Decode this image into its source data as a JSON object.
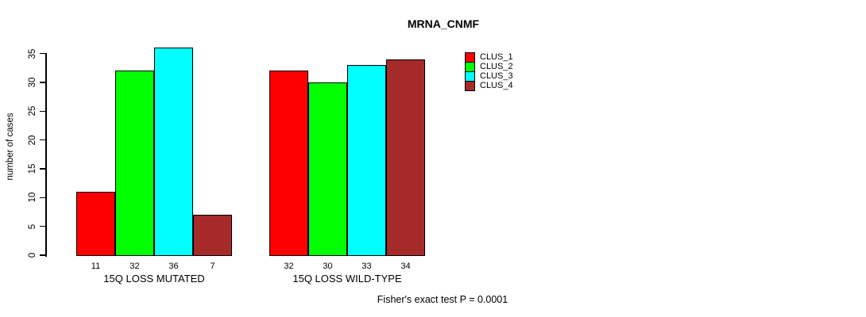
{
  "chart_data": {
    "type": "bar",
    "title": "MRNA_CNMF",
    "ylabel": "number of cases",
    "xlabel": "",
    "categories": [
      "15Q LOSS MUTATED",
      "15Q LOSS WILD-TYPE"
    ],
    "series": [
      {
        "name": "CLUS_1",
        "color": "#FF0000",
        "values": [
          11,
          32
        ]
      },
      {
        "name": "CLUS_2",
        "color": "#00FF00",
        "values": [
          32,
          30
        ]
      },
      {
        "name": "CLUS_3",
        "color": "#00FFFF",
        "values": [
          36,
          33
        ]
      },
      {
        "name": "CLUS_4",
        "color": "#A52A2A",
        "values": [
          7,
          34
        ]
      }
    ],
    "yticks": [
      0,
      5,
      10,
      15,
      20,
      25,
      30,
      35
    ],
    "ylim": [
      0,
      36
    ],
    "grid": false,
    "bar_borders": true,
    "value_labels_shown": true,
    "legend_position": "right-of-plot-top",
    "annotation": "Fisher's exact test P = 0.0001"
  },
  "colors": {
    "background": "#FFFFFF",
    "axis": "#000000",
    "text": "#000000"
  }
}
